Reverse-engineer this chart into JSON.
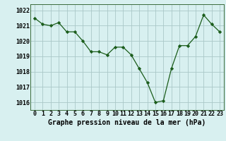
{
  "x": [
    0,
    1,
    2,
    3,
    4,
    5,
    6,
    7,
    8,
    9,
    10,
    11,
    12,
    13,
    14,
    15,
    16,
    17,
    18,
    19,
    20,
    21,
    22,
    23
  ],
  "y": [
    1021.5,
    1021.1,
    1021.0,
    1021.2,
    1020.6,
    1020.6,
    1020.0,
    1019.3,
    1019.3,
    1019.1,
    1019.6,
    1019.6,
    1019.1,
    1018.2,
    1017.3,
    1016.0,
    1016.1,
    1018.2,
    1019.7,
    1019.7,
    1020.3,
    1021.7,
    1021.1,
    1020.6
  ],
  "line_color": "#1a5c1a",
  "marker": "D",
  "marker_size": 2.2,
  "bg_color": "#d8f0f0",
  "grid_color": "#aac8c8",
  "xlabel": "Graphe pression niveau de la mer (hPa)",
  "xlabel_fontsize": 7.0,
  "tick_fontsize": 6.0,
  "ylim": [
    1015.5,
    1022.4
  ],
  "yticks": [
    1016,
    1017,
    1018,
    1019,
    1020,
    1021,
    1022
  ],
  "xticks": [
    0,
    1,
    2,
    3,
    4,
    5,
    6,
    7,
    8,
    9,
    10,
    11,
    12,
    13,
    14,
    15,
    16,
    17,
    18,
    19,
    20,
    21,
    22,
    23
  ],
  "x_tick_labels": [
    "0",
    "1",
    "2",
    "3",
    "4",
    "5",
    "6",
    "7",
    "8",
    "9",
    "10",
    "11",
    "12",
    "13",
    "14",
    "15",
    "16",
    "17",
    "18",
    "19",
    "20",
    "21",
    "22",
    "23"
  ]
}
